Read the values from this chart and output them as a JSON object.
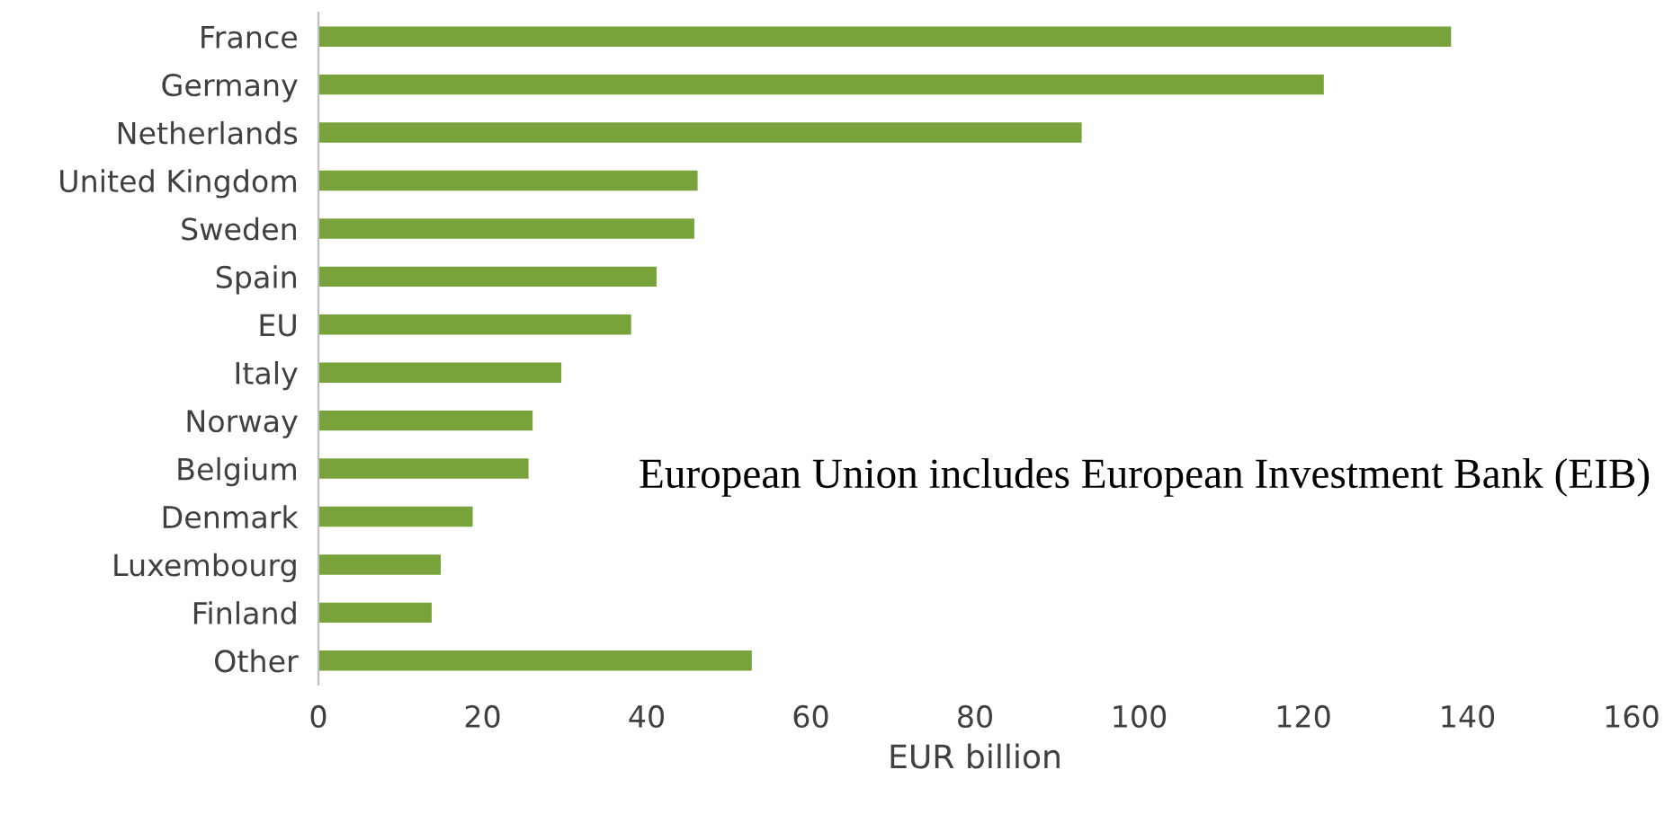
{
  "chart_data": {
    "type": "bar",
    "orientation": "horizontal",
    "xlabel": "EUR billion",
    "categories": [
      "France",
      "Germany",
      "Netherlands",
      "United Kingdom",
      "Sweden",
      "Spain",
      "EU",
      "Italy",
      "Norway",
      "Belgium",
      "Denmark",
      "Luxembourg",
      "Finland",
      "Other"
    ],
    "values": [
      138,
      122.5,
      93,
      46.2,
      45.8,
      41.2,
      38.1,
      29.6,
      26.1,
      25.6,
      18.8,
      14.9,
      13.8,
      52.8
    ],
    "color": "#77a33a",
    "xlim": [
      0,
      160
    ],
    "xticks": [
      0,
      20,
      40,
      60,
      80,
      100,
      120,
      140,
      160
    ],
    "grid": false,
    "legend": false,
    "annotations": [
      "European Union includes European Investment Bank (EIB)"
    ]
  }
}
